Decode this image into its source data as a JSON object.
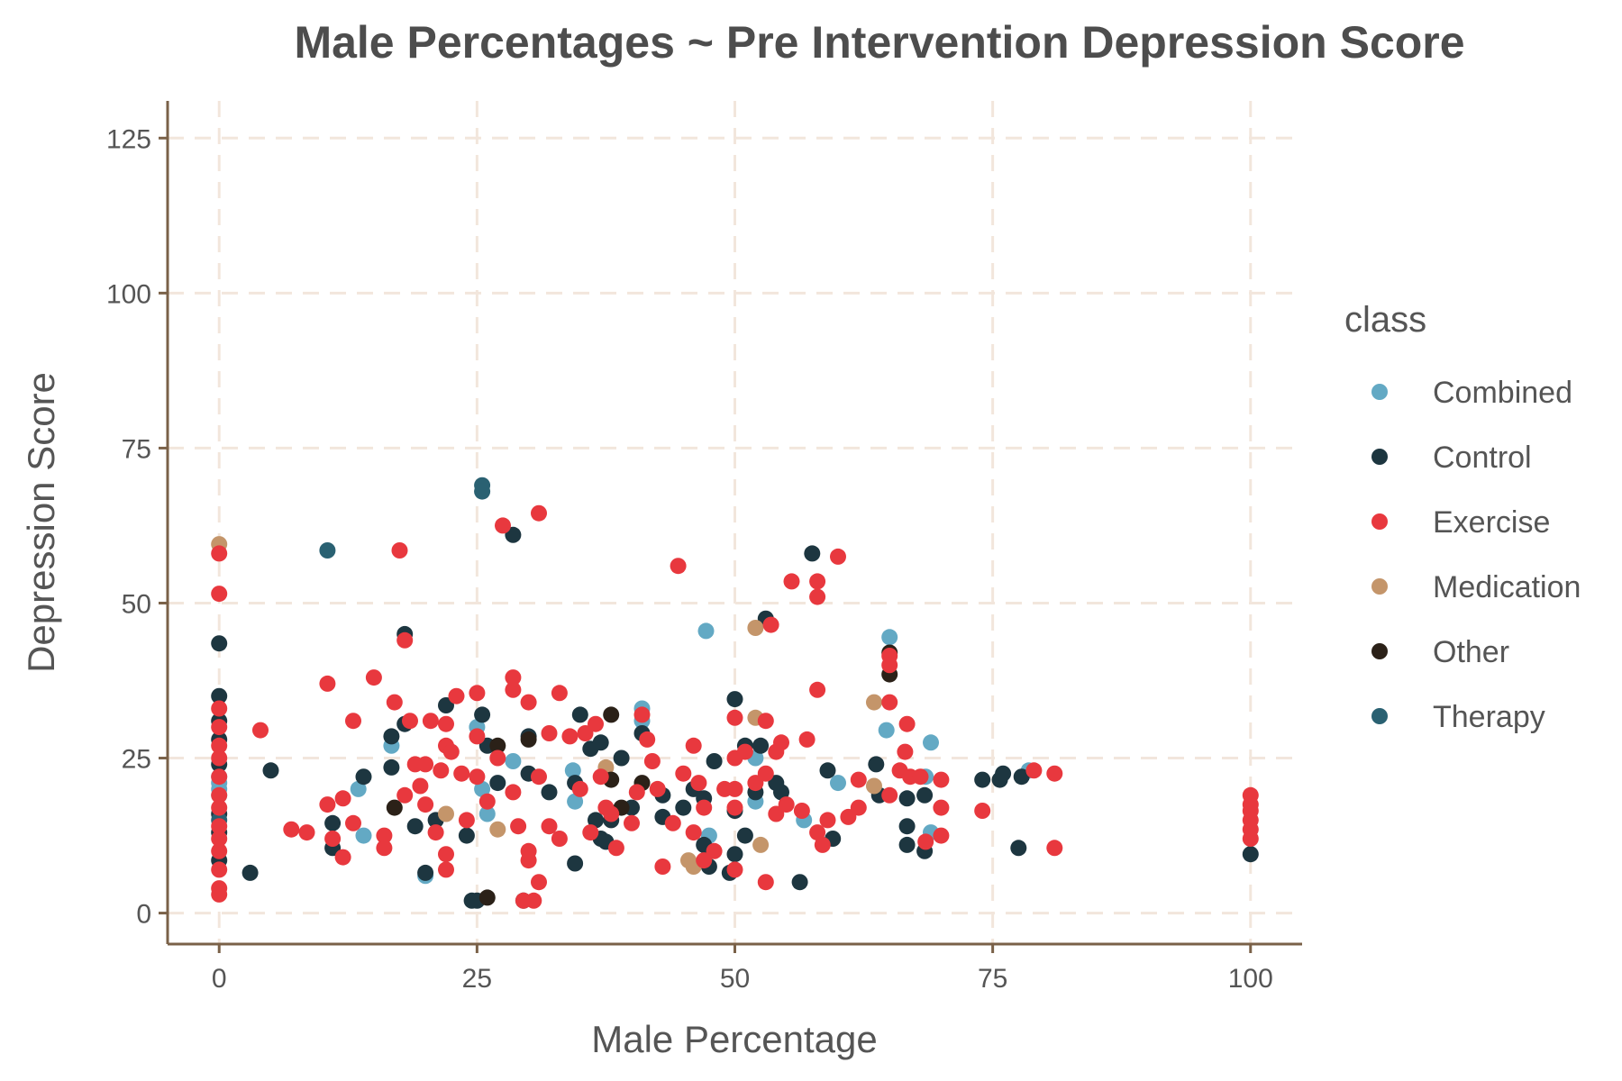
{
  "chart_data": {
    "type": "scatter",
    "title": "Male Percentages ~ Pre Intervention Depression Score",
    "xlabel": "Male Percentage",
    "ylabel": "Depression Score",
    "xlim": [
      -5,
      105
    ],
    "ylim": [
      -5,
      131
    ],
    "xticks": [
      0,
      25,
      50,
      75,
      100
    ],
    "yticks": [
      0,
      25,
      50,
      75,
      100,
      125
    ],
    "xtick_labels": [
      "0",
      "25",
      "50",
      "75",
      "100"
    ],
    "ytick_labels": [
      "0",
      "25",
      "50",
      "75",
      "100",
      "125"
    ],
    "grid": true,
    "legend": {
      "title": "class",
      "position": "right"
    },
    "series": [
      {
        "name": "Combined",
        "color": "#63a9c4",
        "points": [
          [
            0,
            21
          ],
          [
            0,
            22
          ],
          [
            0,
            19
          ],
          [
            0,
            20
          ],
          [
            13.5,
            20
          ],
          [
            14,
            12.5
          ],
          [
            16.7,
            27
          ],
          [
            20,
            6
          ],
          [
            25,
            30
          ],
          [
            25.5,
            20
          ],
          [
            26,
            16
          ],
          [
            28.5,
            24.5
          ],
          [
            34.3,
            23
          ],
          [
            34.5,
            18
          ],
          [
            41,
            33
          ],
          [
            41,
            31
          ],
          [
            47.2,
            45.5
          ],
          [
            47.5,
            12.5
          ],
          [
            52,
            25
          ],
          [
            52,
            18
          ],
          [
            56.7,
            15
          ],
          [
            60,
            21
          ],
          [
            65,
            44.5
          ],
          [
            64.7,
            29.5
          ],
          [
            68.5,
            22
          ],
          [
            69,
            27.5
          ],
          [
            69,
            13
          ],
          [
            78.5,
            23
          ]
        ]
      },
      {
        "name": "Control",
        "color": "#1d3640",
        "points": [
          [
            0,
            43.5
          ],
          [
            0,
            35
          ],
          [
            0,
            31
          ],
          [
            0,
            28
          ],
          [
            0,
            24
          ],
          [
            0,
            16
          ],
          [
            0,
            13
          ],
          [
            0,
            8.5
          ],
          [
            3,
            6.5
          ],
          [
            5,
            23
          ],
          [
            11,
            14.5
          ],
          [
            11,
            10.5
          ],
          [
            14,
            22
          ],
          [
            16.7,
            28.5
          ],
          [
            16.7,
            23.5
          ],
          [
            18,
            45
          ],
          [
            18,
            30.5
          ],
          [
            19,
            14
          ],
          [
            20,
            6.5
          ],
          [
            21,
            15
          ],
          [
            22,
            33.5
          ],
          [
            24,
            12.5
          ],
          [
            24.5,
            2
          ],
          [
            25,
            2
          ],
          [
            25.5,
            32
          ],
          [
            26,
            27
          ],
          [
            27,
            21
          ],
          [
            28.5,
            61
          ],
          [
            29.5,
            2
          ],
          [
            30,
            28.5
          ],
          [
            30,
            22.5
          ],
          [
            32,
            19.5
          ],
          [
            34.5,
            8
          ],
          [
            34.5,
            21
          ],
          [
            35,
            32
          ],
          [
            36,
            26.5
          ],
          [
            36.5,
            15
          ],
          [
            37,
            27.5
          ],
          [
            37,
            12
          ],
          [
            37.5,
            11.5
          ],
          [
            38,
            15
          ],
          [
            39,
            25
          ],
          [
            40,
            17
          ],
          [
            41,
            29
          ],
          [
            43,
            19
          ],
          [
            43,
            15.5
          ],
          [
            45,
            17
          ],
          [
            46,
            20
          ],
          [
            47,
            11
          ],
          [
            47,
            18.5
          ],
          [
            47.5,
            7.5
          ],
          [
            48,
            24.5
          ],
          [
            49.5,
            6.5
          ],
          [
            50,
            34.5
          ],
          [
            50,
            16.5
          ],
          [
            50,
            9.5
          ],
          [
            51,
            12.5
          ],
          [
            51,
            27
          ],
          [
            52,
            19.5
          ],
          [
            52.5,
            27
          ],
          [
            53,
            47.5
          ],
          [
            54,
            21
          ],
          [
            54.5,
            19.5
          ],
          [
            57.5,
            58
          ],
          [
            56.3,
            5
          ],
          [
            59,
            23
          ],
          [
            59.5,
            12
          ],
          [
            63.7,
            24
          ],
          [
            64,
            19
          ],
          [
            66.7,
            14
          ],
          [
            66.7,
            11
          ],
          [
            66.7,
            18.5
          ],
          [
            68.4,
            10
          ],
          [
            68.4,
            19
          ],
          [
            74,
            21.5
          ],
          [
            75.7,
            21.5
          ],
          [
            76,
            22.5
          ],
          [
            77.5,
            10.5
          ],
          [
            77.8,
            22
          ],
          [
            100,
            9.5
          ]
        ]
      },
      {
        "name": "Exercise",
        "color": "#e8383e",
        "points": [
          [
            0,
            58
          ],
          [
            0,
            51.5
          ],
          [
            0,
            33
          ],
          [
            0,
            30
          ],
          [
            0,
            27
          ],
          [
            0,
            25
          ],
          [
            0,
            22
          ],
          [
            0,
            19
          ],
          [
            0,
            17
          ],
          [
            0,
            14
          ],
          [
            0,
            12
          ],
          [
            0,
            10
          ],
          [
            0,
            7
          ],
          [
            0,
            4
          ],
          [
            0,
            3
          ],
          [
            4,
            29.5
          ],
          [
            7,
            13.5
          ],
          [
            8.5,
            13
          ],
          [
            10.5,
            37
          ],
          [
            10.5,
            17.5
          ],
          [
            11,
            12
          ],
          [
            12,
            18.5
          ],
          [
            12,
            9
          ],
          [
            13,
            31
          ],
          [
            13,
            14.5
          ],
          [
            15,
            38
          ],
          [
            16,
            12.5
          ],
          [
            16,
            10.5
          ],
          [
            17,
            34
          ],
          [
            17.5,
            58.5
          ],
          [
            18,
            44
          ],
          [
            18,
            19
          ],
          [
            18.5,
            31
          ],
          [
            19,
            24
          ],
          [
            19.5,
            20.5
          ],
          [
            20,
            17.5
          ],
          [
            20,
            24
          ],
          [
            20.5,
            31
          ],
          [
            21,
            13
          ],
          [
            21.5,
            23
          ],
          [
            22,
            30.5
          ],
          [
            22,
            27
          ],
          [
            22,
            9.5
          ],
          [
            22,
            7
          ],
          [
            22.5,
            26
          ],
          [
            23,
            35
          ],
          [
            23.5,
            22.5
          ],
          [
            24,
            15
          ],
          [
            25,
            35.5
          ],
          [
            25,
            28.5
          ],
          [
            25,
            22
          ],
          [
            26,
            18
          ],
          [
            27,
            25
          ],
          [
            27.5,
            62.5
          ],
          [
            28.5,
            38
          ],
          [
            28.5,
            36
          ],
          [
            28.5,
            19.5
          ],
          [
            29,
            14
          ],
          [
            29.5,
            2
          ],
          [
            30,
            10
          ],
          [
            30,
            8.5
          ],
          [
            30,
            34
          ],
          [
            30.5,
            2
          ],
          [
            31,
            64.5
          ],
          [
            31,
            22
          ],
          [
            31,
            5
          ],
          [
            32,
            29
          ],
          [
            32,
            14
          ],
          [
            33,
            35.5
          ],
          [
            33,
            12
          ],
          [
            34,
            28.5
          ],
          [
            35,
            20
          ],
          [
            35.5,
            29
          ],
          [
            36,
            13
          ],
          [
            36.5,
            30.5
          ],
          [
            37,
            22
          ],
          [
            37.5,
            17
          ],
          [
            38,
            16
          ],
          [
            38.5,
            10.5
          ],
          [
            40,
            14.5
          ],
          [
            40.5,
            19.5
          ],
          [
            41,
            32
          ],
          [
            41.5,
            28
          ],
          [
            42,
            24.5
          ],
          [
            42.5,
            20
          ],
          [
            43,
            7.5
          ],
          [
            44,
            14.5
          ],
          [
            44.5,
            56
          ],
          [
            45,
            22.5
          ],
          [
            46,
            27
          ],
          [
            46,
            13
          ],
          [
            46.5,
            21
          ],
          [
            47,
            17
          ],
          [
            47,
            8.5
          ],
          [
            48,
            10
          ],
          [
            49,
            20
          ],
          [
            50,
            31.5
          ],
          [
            50,
            25
          ],
          [
            50,
            20
          ],
          [
            50,
            17
          ],
          [
            50,
            7
          ],
          [
            51,
            26
          ],
          [
            52,
            21
          ],
          [
            53,
            31
          ],
          [
            53,
            22.5
          ],
          [
            53,
            5
          ],
          [
            53.5,
            46.5
          ],
          [
            54,
            16
          ],
          [
            54,
            26
          ],
          [
            54.5,
            27.5
          ],
          [
            55,
            17.5
          ],
          [
            55.5,
            53.5
          ],
          [
            56.5,
            16.5
          ],
          [
            57,
            28
          ],
          [
            58,
            53.5
          ],
          [
            58,
            51
          ],
          [
            58,
            36
          ],
          [
            58,
            13
          ],
          [
            58.5,
            11
          ],
          [
            59,
            15
          ],
          [
            60,
            57.5
          ],
          [
            61,
            15.5
          ],
          [
            62,
            21.5
          ],
          [
            62,
            17
          ],
          [
            65,
            41.5
          ],
          [
            65,
            40
          ],
          [
            65,
            34
          ],
          [
            65,
            19
          ],
          [
            66,
            23
          ],
          [
            66.5,
            26
          ],
          [
            66.7,
            30.5
          ],
          [
            67,
            22
          ],
          [
            68,
            22
          ],
          [
            68.5,
            11.5
          ],
          [
            70,
            21.5
          ],
          [
            70,
            17
          ],
          [
            70,
            12.5
          ],
          [
            74,
            16.5
          ],
          [
            79,
            23
          ],
          [
            81,
            22.5
          ],
          [
            81,
            10.5
          ],
          [
            100,
            19
          ],
          [
            100,
            17.5
          ],
          [
            100,
            16.5
          ],
          [
            100,
            15
          ],
          [
            100,
            13.5
          ],
          [
            100,
            12
          ]
        ]
      },
      {
        "name": "Medication",
        "color": "#c4956a",
        "points": [
          [
            0,
            59.5
          ],
          [
            22,
            16
          ],
          [
            27,
            13.5
          ],
          [
            37.5,
            23.5
          ],
          [
            45.5,
            8.5
          ],
          [
            46,
            7.5
          ],
          [
            52,
            31.5
          ],
          [
            52,
            46
          ],
          [
            52.5,
            11
          ],
          [
            63.5,
            34
          ],
          [
            63.5,
            20.5
          ]
        ]
      },
      {
        "name": "Other",
        "color": "#2b2118",
        "points": [
          [
            17,
            17
          ],
          [
            26,
            2.5
          ],
          [
            27,
            27
          ],
          [
            30,
            28
          ],
          [
            38,
            32
          ],
          [
            38,
            21.5
          ],
          [
            39,
            17
          ],
          [
            41,
            21
          ],
          [
            65,
            42
          ],
          [
            65,
            38.5
          ]
        ]
      },
      {
        "name": "Therapy",
        "color": "#2a6172",
        "points": [
          [
            0,
            15
          ],
          [
            10.5,
            58.5
          ],
          [
            25.5,
            69
          ],
          [
            25.5,
            68
          ]
        ]
      }
    ]
  }
}
